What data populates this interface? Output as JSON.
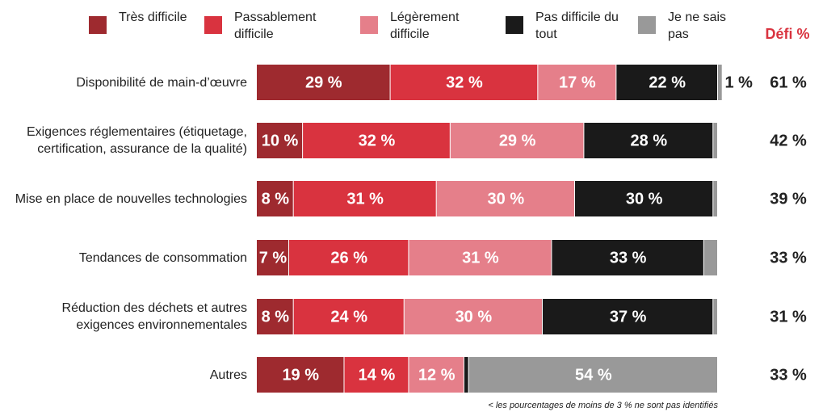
{
  "chart_data": {
    "type": "stacked_bar_horizontal",
    "categories": [
      "Disponibilité de main-d’œuvre",
      "Exigences réglementaires (étiquetage, certification, assurance de la qualité)",
      "Mise en place de nouvelles technologies",
      "Tendances de consommation",
      "Réduction des déchets et autres exigences environnementales",
      "Autres"
    ],
    "xlim": [
      0,
      100
    ],
    "series": [
      {
        "name": "Très difficile",
        "color": "#9e2a2f",
        "values": [
          29,
          10,
          8,
          7,
          8,
          19
        ],
        "value_labels": [
          "29 %",
          "10 %",
          "8 %",
          "7 %",
          "8 %",
          "19 %"
        ]
      },
      {
        "name": "Passablement difficile",
        "color": "#d9333f",
        "values": [
          32,
          32,
          31,
          26,
          24,
          14
        ],
        "value_labels": [
          "32 %",
          "32 %",
          "31 %",
          "26 %",
          "24 %",
          "14 %"
        ]
      },
      {
        "name": "Légèrement difficile",
        "color": "#e57f8a",
        "values": [
          17,
          29,
          30,
          31,
          30,
          12
        ],
        "value_labels": [
          "17 %",
          "29 %",
          "30 %",
          "31 %",
          "30 %",
          "12 %"
        ]
      },
      {
        "name": "Pas difficile du tout",
        "color": "#1a1a1a",
        "values": [
          22,
          28,
          30,
          33,
          37,
          1
        ],
        "value_labels": [
          "22 %",
          "28 %",
          "30 %",
          "33 %",
          "37 %",
          null
        ]
      },
      {
        "name": "Je ne sais pas",
        "color": "#999999",
        "values": [
          1,
          1,
          1,
          3,
          1,
          54
        ],
        "value_labels": [
          "1 %",
          null,
          null,
          null,
          null,
          "54 %"
        ]
      }
    ],
    "challenge": {
      "title": "Défi %",
      "labels": [
        "61 %",
        "42 %",
        "39 %",
        "33 %",
        "31 %",
        "33 %"
      ]
    },
    "footnote": "< les pourcentages de moins de 3 % ne sont pas identifiés"
  }
}
